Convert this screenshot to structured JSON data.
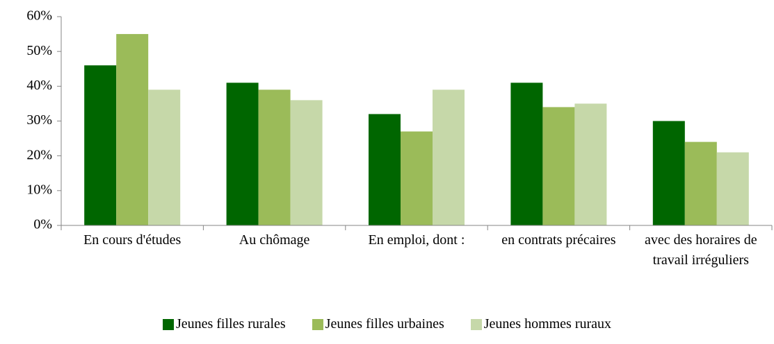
{
  "chart_data": {
    "type": "bar",
    "categories": [
      "En cours d'études",
      "Au chômage",
      "En emploi, dont :",
      "en contrats précaires",
      "avec des horaires de travail irréguliers"
    ],
    "series": [
      {
        "name": "Jeunes filles rurales",
        "color": "#006600",
        "values": [
          46,
          41,
          32,
          41,
          30
        ]
      },
      {
        "name": "Jeunes filles urbaines",
        "color": "#9bbb59",
        "values": [
          55,
          39,
          27,
          34,
          24
        ]
      },
      {
        "name": "Jeunes hommes ruraux",
        "color": "#c6d8a9",
        "values": [
          39,
          36,
          39,
          35,
          21
        ]
      }
    ],
    "ylim": [
      0,
      60
    ],
    "yticks": [
      {
        "value": 0,
        "label": "0%"
      },
      {
        "value": 10,
        "label": "10%"
      },
      {
        "value": 20,
        "label": "20%"
      },
      {
        "value": 30,
        "label": "30%"
      },
      {
        "value": 40,
        "label": "40%"
      },
      {
        "value": 50,
        "label": "50%"
      },
      {
        "value": 60,
        "label": "60%"
      }
    ],
    "legend": "bottom"
  }
}
